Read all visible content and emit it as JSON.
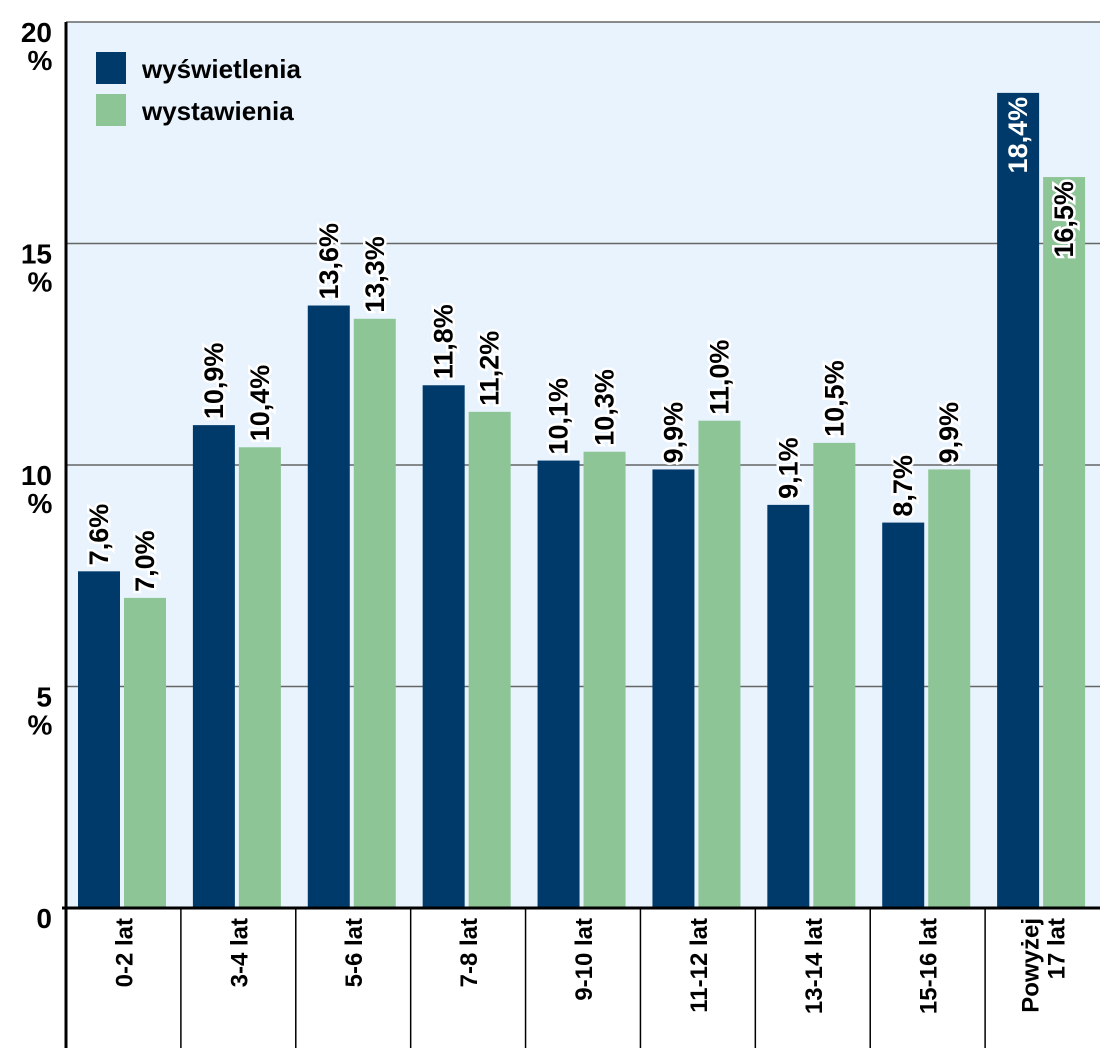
{
  "chart_data": {
    "type": "bar",
    "categories": [
      "0-2 lat",
      "3-4 lat",
      "5-6 lat",
      "7-8 lat",
      "9-10 lat",
      "11-12 lat",
      "13-14 lat",
      "15-16 lat",
      "Powyżej 17 lat"
    ],
    "series": [
      {
        "name": "wyświetlenia",
        "color": "#003a6b",
        "values": [
          7.6,
          10.9,
          13.6,
          11.8,
          10.1,
          9.9,
          9.1,
          8.7,
          18.4
        ],
        "labels": [
          "7,6%",
          "10,9%",
          "13,6%",
          "11,8%",
          "10,1%",
          "9,9%",
          "9,1%",
          "8,7%",
          "18,4%"
        ]
      },
      {
        "name": "wystawienia",
        "color": "#8dc597",
        "values": [
          7.0,
          10.4,
          13.3,
          11.2,
          10.3,
          11.0,
          10.5,
          9.9,
          16.5
        ],
        "labels": [
          "7,0%",
          "10,4%",
          "13,3%",
          "11,2%",
          "10,3%",
          "11,0%",
          "10,5%",
          "9,9%",
          "16,5%"
        ]
      }
    ],
    "yticks": [
      {
        "value": 0,
        "label": "0",
        "unit": ""
      },
      {
        "value": 5,
        "label": "5",
        "unit": "%"
      },
      {
        "value": 10,
        "label": "10",
        "unit": "%"
      },
      {
        "value": 15,
        "label": "15",
        "unit": "%"
      },
      {
        "value": 20,
        "label": "20",
        "unit": "%"
      }
    ],
    "ylim": [
      0,
      20
    ],
    "grid": true,
    "legend_position": "top-left",
    "title": "",
    "xlabel": "",
    "ylabel": "",
    "colors": {
      "plot_background": "#e8f3fd",
      "gridline": "#666666",
      "axis": "#000000"
    }
  }
}
